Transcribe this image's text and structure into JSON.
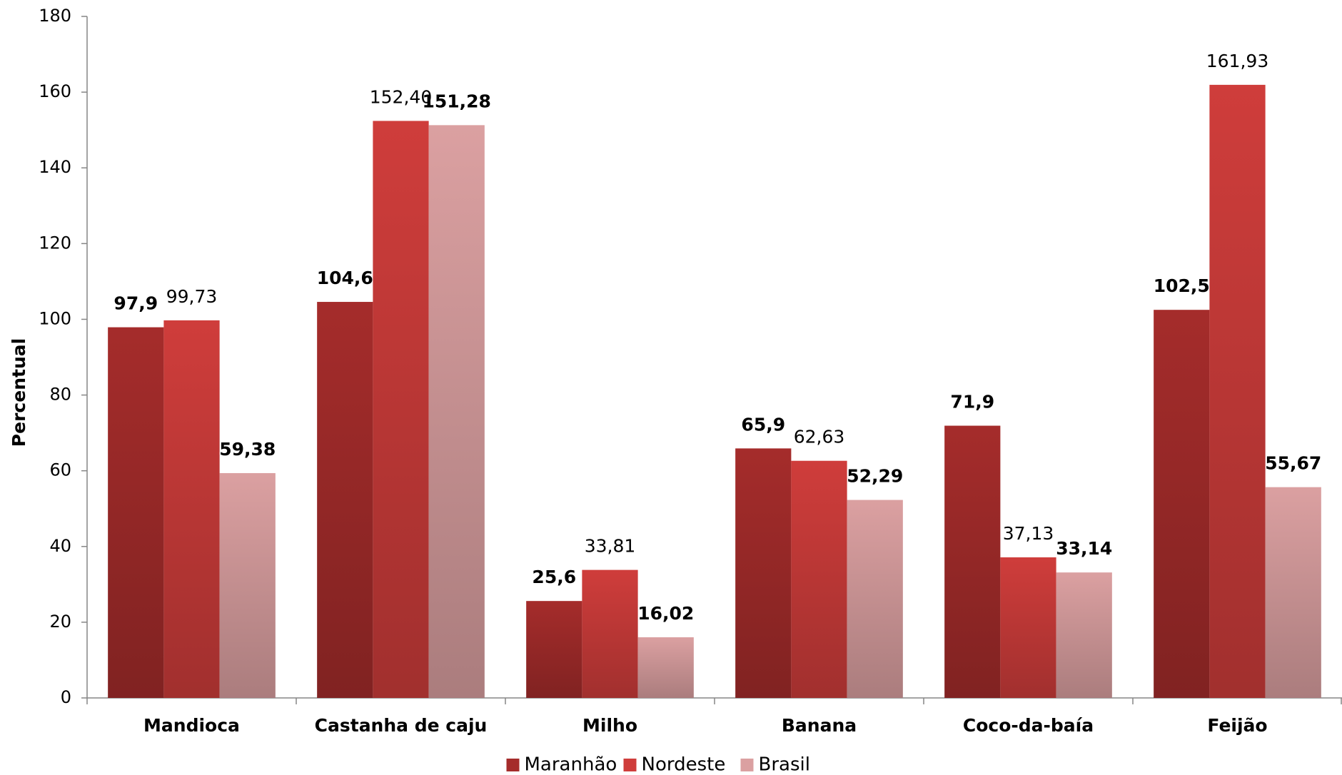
{
  "chart_data": {
    "type": "bar",
    "y_label": "Percentual",
    "categories": [
      "Mandioca",
      "Castanha de caju",
      "Milho",
      "Banana",
      "Coco-da-baía",
      "Feijão"
    ],
    "series": [
      {
        "name": "Maranhão",
        "color": "#a52c2b",
        "values": [
          97.9,
          104.6,
          25.6,
          65.9,
          71.9,
          102.5
        ],
        "value_labels": [
          "97,9",
          "104,6",
          "25,6",
          "65,9",
          "71,9",
          "102,5"
        ]
      },
      {
        "name": "Nordeste",
        "color": "#cf3d3b",
        "values": [
          99.73,
          152.4,
          33.81,
          62.63,
          37.13,
          161.93
        ],
        "value_labels": [
          "99,73",
          "152,40",
          "33,81",
          "62,63",
          "37,13",
          "161,93"
        ]
      },
      {
        "name": "Brasil",
        "color": "#dba0a1",
        "values": [
          59.38,
          151.28,
          16.02,
          52.29,
          33.14,
          55.67
        ],
        "value_labels": [
          "59,38",
          "151,28",
          "16,02",
          "52,29",
          "33,14",
          "55,67"
        ]
      }
    ],
    "ylim": [
      0,
      180
    ],
    "yticks": [
      0,
      20,
      40,
      60,
      80,
      100,
      120,
      140,
      160,
      180
    ],
    "legend": "bottom"
  }
}
